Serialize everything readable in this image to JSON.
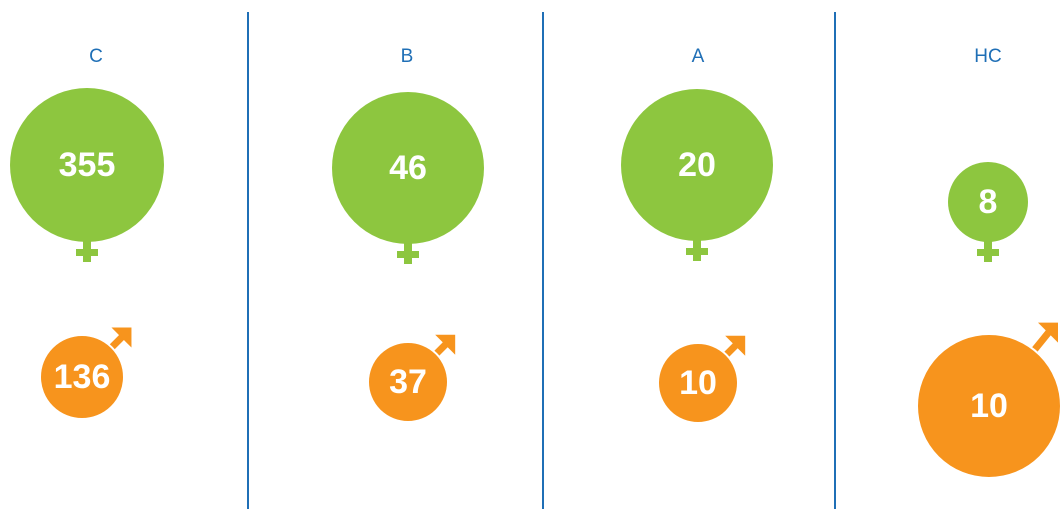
{
  "columns": [
    {
      "label": "C",
      "female": 355,
      "male": 136
    },
    {
      "label": "B",
      "female": 46,
      "male": 37
    },
    {
      "label": "A",
      "female": 20,
      "male": 10
    },
    {
      "label": "HC",
      "female": 8,
      "male": 10
    }
  ]
}
